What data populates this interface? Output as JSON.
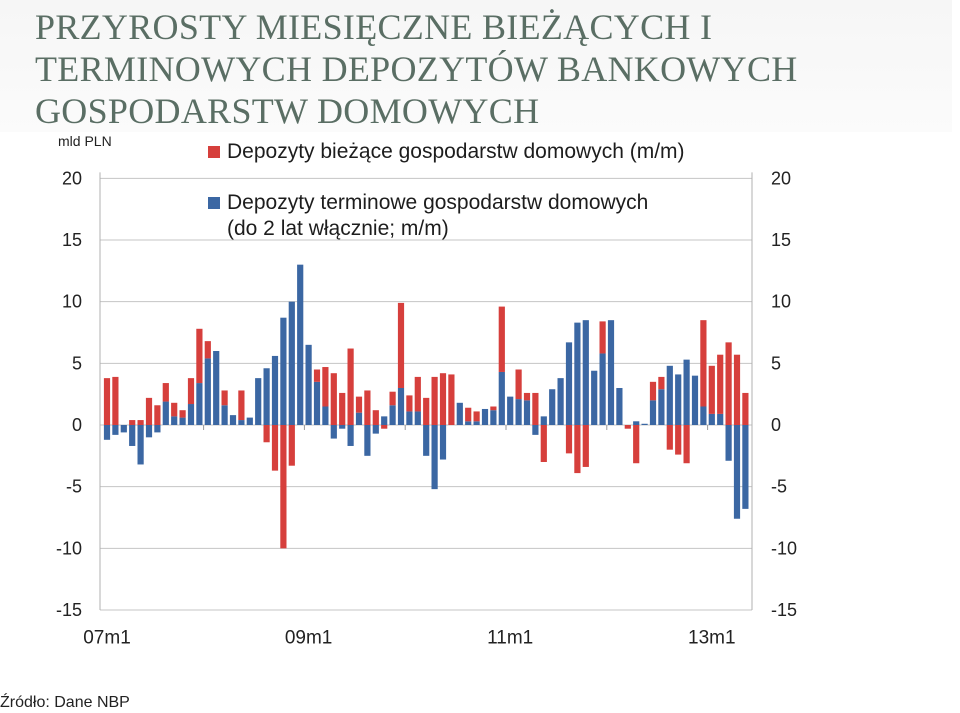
{
  "slide": {
    "title": "PRZYROSTY MIESIĘCZNE BIEŻĄCYCH I\nTERMINOWYCH DEPOZYTÓW BANKOWYCH\nGOSPODARSTW DOMOWYCH",
    "title_color": "#5a6e64",
    "source": "Źródło: Dane NBP"
  },
  "chart_data": {
    "type": "bar",
    "stacked": true,
    "ylabel": "mld PLN",
    "ylim": [
      -15,
      20
    ],
    "y_ticks": [
      20,
      15,
      10,
      5,
      0,
      -5,
      -10,
      -15
    ],
    "secondary_y_axis": true,
    "x_tick_labels": [
      "07m1",
      "09m1",
      "11m1",
      "13m1"
    ],
    "grid": true,
    "legend_position": "top",
    "series": [
      {
        "name": "Depozyty bieżące gospodarstw domowych (m/m)",
        "color": "#d63f3c",
        "values": [
          3.8,
          3.9,
          0.0,
          0.4,
          0.4,
          2.2,
          1.6,
          1.5,
          1.1,
          0.6,
          2.1,
          4.4,
          1.4,
          0.0,
          1.2,
          0.0,
          2.4,
          0.0,
          0.0,
          -1.4,
          -3.7,
          -10.0,
          -3.3,
          0.0,
          0.0,
          1.0,
          3.2,
          4.2,
          2.6,
          6.2,
          1.3,
          2.8,
          1.2,
          -0.3,
          1.1,
          6.9,
          1.3,
          2.8,
          2.2,
          3.9,
          4.2,
          4.1,
          0.0,
          1.1,
          0.8,
          0.0,
          0.3,
          5.3,
          0.0,
          2.4,
          0.6,
          2.6,
          -3.0,
          0.0,
          0.0,
          -2.3,
          -3.9,
          -3.4,
          0.0,
          2.6,
          0.0,
          0.0,
          -0.3,
          -3.1,
          0.0,
          1.5,
          1.0,
          -2.0,
          -2.4,
          -3.1,
          0.0,
          7.0,
          3.9,
          4.8,
          6.7,
          5.7,
          2.6
        ]
      },
      {
        "name": "Depozyty terminowe gospodarstw domowych\n(do 2 lat włącznie; m/m)",
        "color": "#3b67a3",
        "values": [
          -1.2,
          -0.8,
          -0.6,
          -1.7,
          -3.2,
          -1.0,
          -0.6,
          1.9,
          0.7,
          0.6,
          1.7,
          3.4,
          5.4,
          6.0,
          1.6,
          0.8,
          0.4,
          0.6,
          3.8,
          4.6,
          5.6,
          8.7,
          10.0,
          13.0,
          6.5,
          3.5,
          1.5,
          -1.1,
          -0.3,
          -1.7,
          1.0,
          -2.5,
          -0.7,
          0.7,
          1.6,
          3.0,
          1.1,
          1.1,
          -2.5,
          -5.2,
          -2.8,
          0.0,
          1.8,
          0.3,
          0.3,
          1.3,
          1.2,
          4.3,
          2.3,
          2.1,
          2.0,
          -0.8,
          0.7,
          2.9,
          3.8,
          6.7,
          8.3,
          8.5,
          4.4,
          5.8,
          8.5,
          3.0,
          0.0,
          0.3,
          0.1,
          2.0,
          2.9,
          4.8,
          4.1,
          5.3,
          4.0,
          1.5,
          0.9,
          0.9,
          -2.9,
          -7.6,
          -6.8
        ]
      }
    ]
  }
}
